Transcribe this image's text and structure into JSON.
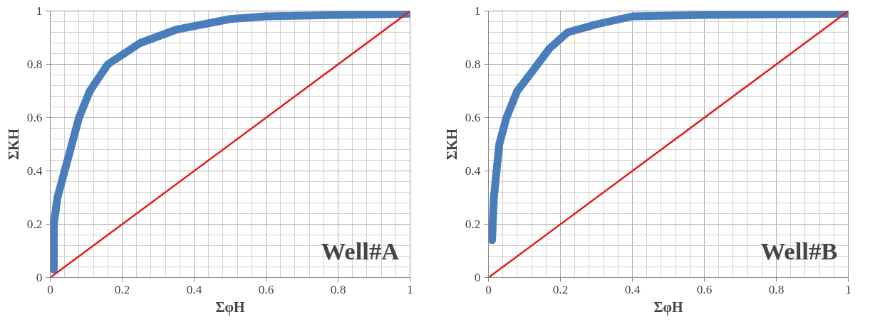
{
  "chart_data": [
    {
      "type": "line",
      "xlabel": "ΣφH",
      "ylabel": "ΣKH",
      "annotations": [
        "Well#A"
      ],
      "xlim": [
        0,
        1
      ],
      "ylim": [
        0,
        1
      ],
      "xticks": [
        0,
        0.2,
        0.4,
        0.6,
        0.8,
        1
      ],
      "yticks": [
        0,
        0.2,
        0.4,
        0.6,
        0.8,
        1
      ],
      "grid": true,
      "marker": "none",
      "line_style": "solid",
      "series": [
        {
          "color": "#4a7ebb",
          "x": [
            0.01,
            0.01,
            0.02,
            0.04,
            0.06,
            0.08,
            0.11,
            0.16,
            0.25,
            0.35,
            0.5,
            0.6,
            0.8,
            1
          ],
          "values": [
            0.03,
            0.2,
            0.3,
            0.4,
            0.5,
            0.6,
            0.7,
            0.8,
            0.88,
            0.93,
            0.97,
            0.98,
            0.985,
            0.99
          ]
        },
        {
          "color": "#e0201b",
          "x": [
            0,
            1
          ],
          "values": [
            0,
            1
          ]
        }
      ]
    },
    {
      "type": "line",
      "xlabel": "ΣφH",
      "ylabel": "ΣKH",
      "annotations": [
        "Well#B"
      ],
      "xlim": [
        0,
        1
      ],
      "ylim": [
        0,
        1
      ],
      "xticks": [
        0,
        0.2,
        0.4,
        0.6,
        0.8,
        1
      ],
      "yticks": [
        0,
        0.2,
        0.4,
        0.6,
        0.8,
        1
      ],
      "grid": true,
      "marker": "none",
      "line_style": "solid",
      "series": [
        {
          "color": "#4a7ebb",
          "x": [
            0.01,
            0.015,
            0.03,
            0.05,
            0.08,
            0.12,
            0.17,
            0.22,
            0.3,
            0.4,
            0.6,
            1
          ],
          "values": [
            0.14,
            0.3,
            0.5,
            0.6,
            0.7,
            0.77,
            0.86,
            0.92,
            0.95,
            0.98,
            0.985,
            0.99
          ]
        },
        {
          "color": "#e0201b",
          "x": [
            0,
            1
          ],
          "values": [
            0,
            1
          ]
        }
      ]
    }
  ]
}
